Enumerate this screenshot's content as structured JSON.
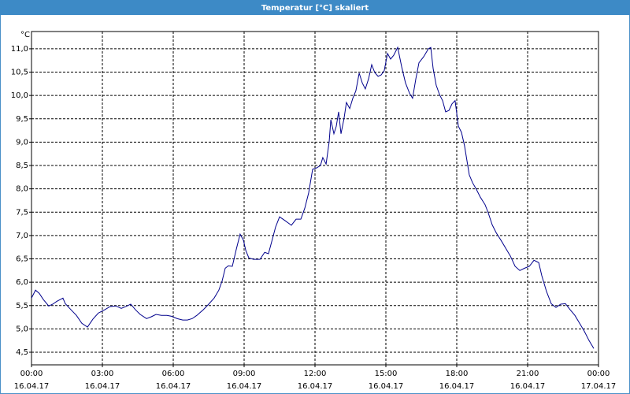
{
  "chart_data": {
    "type": "line",
    "title": "Temperatur [°C] skaliert",
    "y_label": "°C",
    "color": "#00008c",
    "grid": true,
    "xlim": [
      0,
      24
    ],
    "ylim": [
      4.23,
      11.37
    ],
    "xticks": [
      {
        "value": 0,
        "label": "00:00"
      },
      {
        "value": 3,
        "label": "03:00"
      },
      {
        "value": 6,
        "label": "06:00"
      },
      {
        "value": 9,
        "label": "09:00"
      },
      {
        "value": 12,
        "label": "12:00"
      },
      {
        "value": 15,
        "label": "15:00"
      },
      {
        "value": 18,
        "label": "18:00"
      },
      {
        "value": 21,
        "label": "21:00"
      },
      {
        "value": 24,
        "label": "00:00"
      }
    ],
    "xtick_dates": [
      "16.04.17",
      "16.04.17",
      "16.04.17",
      "16.04.17",
      "16.04.17",
      "16.04.17",
      "16.04.17",
      "16.04.17",
      "17.04.17"
    ],
    "yticks": [
      {
        "value": 4.5,
        "label": "4,5"
      },
      {
        "value": 5,
        "label": "5,0"
      },
      {
        "value": 5.5,
        "label": "5,5"
      },
      {
        "value": 6,
        "label": "6,0"
      },
      {
        "value": 6.5,
        "label": "6,5"
      },
      {
        "value": 7,
        "label": "7,0"
      },
      {
        "value": 7.5,
        "label": "7,5"
      },
      {
        "value": 8,
        "label": "8,0"
      },
      {
        "value": 8.5,
        "label": "8,5"
      },
      {
        "value": 9,
        "label": "9,0"
      },
      {
        "value": 9.5,
        "label": "9,5"
      },
      {
        "value": 10,
        "label": "10,0"
      },
      {
        "value": 10.5,
        "label": "10,5"
      },
      {
        "value": 11,
        "label": "11,0"
      }
    ],
    "x": [
      0,
      0.17,
      0.33,
      0.5,
      0.73,
      0.9,
      1.07,
      1.33,
      1.43,
      1.67,
      1.9,
      2.13,
      2.37,
      2.6,
      2.83,
      3.1,
      3.33,
      3.57,
      3.8,
      4,
      4.2,
      4.4,
      4.6,
      4.87,
      5.07,
      5.27,
      5.5,
      5.73,
      5.93,
      6.17,
      6.4,
      6.6,
      6.8,
      7,
      7.27,
      7.5,
      7.73,
      7.93,
      8.07,
      8.2,
      8.33,
      8.5,
      8.67,
      8.83,
      8.97,
      9.07,
      9.2,
      9.4,
      9.67,
      9.87,
      10.03,
      10.2,
      10.33,
      10.5,
      10.73,
      11,
      11.2,
      11.4,
      11.57,
      11.73,
      11.9,
      12.07,
      12.23,
      12.33,
      12.47,
      12.6,
      12.67,
      12.8,
      12.9,
      13,
      13.1,
      13.23,
      13.33,
      13.47,
      13.6,
      13.73,
      13.87,
      14,
      14.13,
      14.27,
      14.4,
      14.53,
      14.67,
      14.8,
      14.93,
      15.07,
      15.2,
      15.33,
      15.5,
      15.67,
      15.83,
      16,
      16.13,
      16.27,
      16.4,
      16.6,
      16.8,
      16.9,
      17,
      17.13,
      17.27,
      17.4,
      17.53,
      17.67,
      17.8,
      17.93,
      18.07,
      18.2,
      18.33,
      18.53,
      18.67,
      18.83,
      19,
      19.2,
      19.33,
      19.5,
      19.67,
      19.87,
      20.07,
      20.27,
      20.47,
      20.67,
      20.87,
      21.07,
      21.27,
      21.47,
      21.6,
      21.8,
      22,
      22.2,
      22.4,
      22.6,
      22.8,
      23,
      23.2,
      23.4,
      23.6,
      23.8
    ],
    "values": [
      5.66,
      5.83,
      5.76,
      5.63,
      5.49,
      5.53,
      5.59,
      5.66,
      5.54,
      5.41,
      5.29,
      5.12,
      5.04,
      5.21,
      5.34,
      5.41,
      5.48,
      5.49,
      5.44,
      5.48,
      5.53,
      5.41,
      5.31,
      5.22,
      5.26,
      5.31,
      5.29,
      5.29,
      5.27,
      5.22,
      5.19,
      5.19,
      5.22,
      5.29,
      5.41,
      5.53,
      5.66,
      5.83,
      6.03,
      6.3,
      6.35,
      6.34,
      6.71,
      7.03,
      6.9,
      6.68,
      6.52,
      6.49,
      6.49,
      6.64,
      6.61,
      6.93,
      7.18,
      7.4,
      7.32,
      7.22,
      7.35,
      7.35,
      7.59,
      7.91,
      8.42,
      8.45,
      8.5,
      8.67,
      8.53,
      9.01,
      9.48,
      9.18,
      9.34,
      9.65,
      9.18,
      9.51,
      9.85,
      9.72,
      9.94,
      10.1,
      10.48,
      10.27,
      10.14,
      10.36,
      10.66,
      10.49,
      10.41,
      10.44,
      10.53,
      10.9,
      10.78,
      10.86,
      11.03,
      10.61,
      10.27,
      10.05,
      9.94,
      10.36,
      10.7,
      10.83,
      11.0,
      11.03,
      10.58,
      10.22,
      10.02,
      9.89,
      9.65,
      9.68,
      9.82,
      9.89,
      9.34,
      9.21,
      8.92,
      8.3,
      8.13,
      7.99,
      7.82,
      7.66,
      7.49,
      7.23,
      7.06,
      6.9,
      6.73,
      6.56,
      6.34,
      6.25,
      6.3,
      6.34,
      6.47,
      6.42,
      6.14,
      5.8,
      5.54,
      5.46,
      5.53,
      5.54,
      5.41,
      5.29,
      5.12,
      4.95,
      4.75,
      4.58
    ]
  }
}
